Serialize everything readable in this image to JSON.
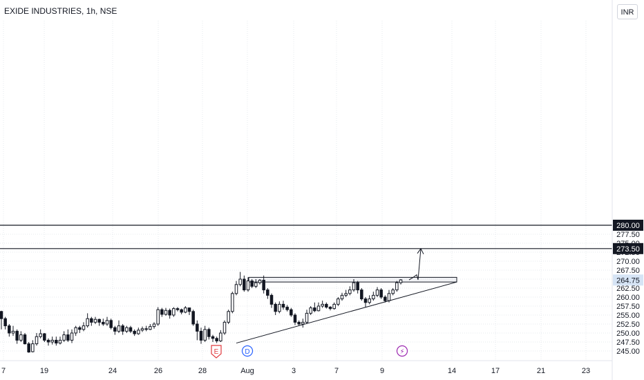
{
  "header": {
    "title": "EXIDE INDUSTRIES, 1h, NSE",
    "currency": "INR"
  },
  "colors": {
    "candle": "#131722",
    "candle_fill_up": "#ffffff",
    "grid": "#e6e8ee",
    "last_price_bg": "#d6e4f5",
    "earnings_event": "#e03a3e",
    "dividend_event": "#2962ff",
    "split_event": "#9c27b0"
  },
  "events": {
    "earnings": "E",
    "dividend": "D",
    "split": "⚡"
  },
  "chart_data": {
    "type": "candlestick",
    "symbol": "EXIDE INDUSTRIES",
    "interval": "1h",
    "exchange": "NSE",
    "currency": "INR",
    "ylim": [
      244.5,
      283.0
    ],
    "y_ticks": [
      245.0,
      247.5,
      250.0,
      252.5,
      255.0,
      257.5,
      260.0,
      262.5,
      265.0,
      267.5,
      270.0,
      272.5,
      275.0,
      277.5,
      280.0
    ],
    "x_labels": [
      "7",
      "19",
      "24",
      "26",
      "28",
      "Aug",
      "3",
      "7",
      "9",
      "14",
      "17",
      "21",
      "23"
    ],
    "horizontal_lines": [
      {
        "price": 280.0,
        "label": "280.00"
      },
      {
        "price": 273.5,
        "label": "273.50"
      }
    ],
    "last_price": {
      "value": 264.75,
      "label": "264.75"
    },
    "resistance_zone": [
      264.2,
      265.5
    ],
    "trendline": {
      "from": 247.2,
      "to": 264.2
    },
    "projection": [
      264.8,
      265.5,
      266.2,
      264.8,
      273.5
    ],
    "candles": [
      [
        256.0,
        254.0,
        256.2,
        251.0
      ],
      [
        254.0,
        252.0,
        254.5,
        251.0
      ],
      [
        252.0,
        250.0,
        252.5,
        249.0
      ],
      [
        250.0,
        250.5,
        252.0,
        249.2
      ],
      [
        250.5,
        248.0,
        251.0,
        247.0
      ],
      [
        248.0,
        249.5,
        250.5,
        247.5
      ],
      [
        249.5,
        247.0,
        250.0,
        246.8
      ],
      [
        247.0,
        244.7,
        247.5,
        244.5
      ],
      [
        244.8,
        247.0,
        248.0,
        244.6
      ],
      [
        247.0,
        249.0,
        250.0,
        246.5
      ],
      [
        249.0,
        249.8,
        251.0,
        248.5
      ],
      [
        249.8,
        248.0,
        250.0,
        247.5
      ],
      [
        248.0,
        247.5,
        248.5,
        246.5
      ],
      [
        247.5,
        248.0,
        249.0,
        246.8
      ],
      [
        248.0,
        247.2,
        249.0,
        246.5
      ],
      [
        247.2,
        248.0,
        249.0,
        246.8
      ],
      [
        248.0,
        249.5,
        250.5,
        247.5
      ],
      [
        249.5,
        248.0,
        251.0,
        247.5
      ],
      [
        248.0,
        250.0,
        251.0,
        247.2
      ],
      [
        250.0,
        251.5,
        252.0,
        249.2
      ],
      [
        251.5,
        251.0,
        252.0,
        250.0
      ],
      [
        251.0,
        252.0,
        253.0,
        250.5
      ],
      [
        252.0,
        254.0,
        255.5,
        251.5
      ],
      [
        254.0,
        253.0,
        254.5,
        252.0
      ],
      [
        253.0,
        253.8,
        254.5,
        252.5
      ],
      [
        253.8,
        253.0,
        254.0,
        252.0
      ],
      [
        253.0,
        252.5,
        254.0,
        252.0
      ],
      [
        252.5,
        253.5,
        254.5,
        252.0
      ],
      [
        253.5,
        251.5,
        254.0,
        251.0
      ],
      [
        251.5,
        250.5,
        252.0,
        249.5
      ],
      [
        250.5,
        252.0,
        253.5,
        250.0
      ],
      [
        252.0,
        250.5,
        252.5,
        249.5
      ],
      [
        250.5,
        251.5,
        252.0,
        250.0
      ],
      [
        251.5,
        250.5,
        252.0,
        250.0
      ],
      [
        250.5,
        249.8,
        251.0,
        249.2
      ],
      [
        249.8,
        250.8,
        251.5,
        249.5
      ],
      [
        250.8,
        251.2,
        251.8,
        250.3
      ],
      [
        251.2,
        251.0,
        252.0,
        250.5
      ],
      [
        251.0,
        251.8,
        252.5,
        250.8
      ],
      [
        251.8,
        252.5,
        253.0,
        251.2
      ],
      [
        252.5,
        256.5,
        257.2,
        252.0
      ],
      [
        256.5,
        255.2,
        257.0,
        254.5
      ],
      [
        255.2,
        256.3,
        257.0,
        254.8
      ],
      [
        256.3,
        255.0,
        256.8,
        254.0
      ],
      [
        255.0,
        256.8,
        257.2,
        254.5
      ],
      [
        256.8,
        256.5,
        257.2,
        256.0
      ],
      [
        256.5,
        255.8,
        256.8,
        255.2
      ],
      [
        255.8,
        257.0,
        257.5,
        255.5
      ],
      [
        257.0,
        256.0,
        257.0,
        255.0
      ],
      [
        256.0,
        252.5,
        256.5,
        252.0
      ],
      [
        252.5,
        250.5,
        253.5,
        248.0
      ],
      [
        250.5,
        248.0,
        251.5,
        247.0
      ],
      [
        248.0,
        251.0,
        252.0,
        247.5
      ],
      [
        251.0,
        249.0,
        251.5,
        248.2
      ],
      [
        249.0,
        248.5,
        249.5,
        247.5
      ],
      [
        248.5,
        247.8,
        249.0,
        247.2
      ],
      [
        247.8,
        250.0,
        250.8,
        247.5
      ],
      [
        250.0,
        253.0,
        253.5,
        249.5
      ],
      [
        253.0,
        256.0,
        256.5,
        252.5
      ],
      [
        256.0,
        261.0,
        261.5,
        255.5
      ],
      [
        261.0,
        263.5,
        264.5,
        260.5
      ],
      [
        263.5,
        265.0,
        267.0,
        263.0
      ],
      [
        265.0,
        262.0,
        266.0,
        261.5
      ],
      [
        262.0,
        264.5,
        265.5,
        261.5
      ],
      [
        264.5,
        263.0,
        265.0,
        262.5
      ],
      [
        263.0,
        264.0,
        265.0,
        262.5
      ],
      [
        264.0,
        264.7,
        265.0,
        263.5
      ],
      [
        264.7,
        262.0,
        266.0,
        261.0
      ],
      [
        262.0,
        260.5,
        262.5,
        259.5
      ],
      [
        260.5,
        258.0,
        261.0,
        257.0
      ],
      [
        258.0,
        256.0,
        258.5,
        255.0
      ],
      [
        256.0,
        258.0,
        258.8,
        255.5
      ],
      [
        258.0,
        257.2,
        259.0,
        256.5
      ],
      [
        257.2,
        256.5,
        257.8,
        256.0
      ],
      [
        256.5,
        255.0,
        257.0,
        254.5
      ],
      [
        255.0,
        253.0,
        255.5,
        252.2
      ],
      [
        253.0,
        252.5,
        253.5,
        252.0
      ],
      [
        252.5,
        253.0,
        254.0,
        251.5
      ],
      [
        253.0,
        255.5,
        256.5,
        252.5
      ],
      [
        255.5,
        257.0,
        257.5,
        255.0
      ],
      [
        257.0,
        256.2,
        258.5,
        255.8
      ],
      [
        256.2,
        257.5,
        258.5,
        256.0
      ],
      [
        257.5,
        258.0,
        259.0,
        257.0
      ],
      [
        258.0,
        257.2,
        258.5,
        256.8
      ],
      [
        257.2,
        256.8,
        257.5,
        256.3
      ],
      [
        256.8,
        258.0,
        258.5,
        256.5
      ],
      [
        258.0,
        259.5,
        260.0,
        257.5
      ],
      [
        259.5,
        260.5,
        261.2,
        259.0
      ],
      [
        260.5,
        261.0,
        262.0,
        260.0
      ],
      [
        261.0,
        262.0,
        263.0,
        260.5
      ],
      [
        262.0,
        264.0,
        265.0,
        261.5
      ],
      [
        264.0,
        262.0,
        264.5,
        261.0
      ],
      [
        262.0,
        259.5,
        262.5,
        259.0
      ],
      [
        259.5,
        258.5,
        260.0,
        257.2
      ],
      [
        258.5,
        259.5,
        260.5,
        258.0
      ],
      [
        259.5,
        260.5,
        261.5,
        259.0
      ],
      [
        260.5,
        262.0,
        262.8,
        260.0
      ],
      [
        262.0,
        260.0,
        262.5,
        259.5
      ],
      [
        260.0,
        259.0,
        260.5,
        258.5
      ],
      [
        259.0,
        261.0,
        262.0,
        258.5
      ],
      [
        261.0,
        262.0,
        262.5,
        260.5
      ],
      [
        262.0,
        264.0,
        264.5,
        261.5
      ],
      [
        264.0,
        264.8,
        265.0,
        263.5
      ]
    ]
  }
}
